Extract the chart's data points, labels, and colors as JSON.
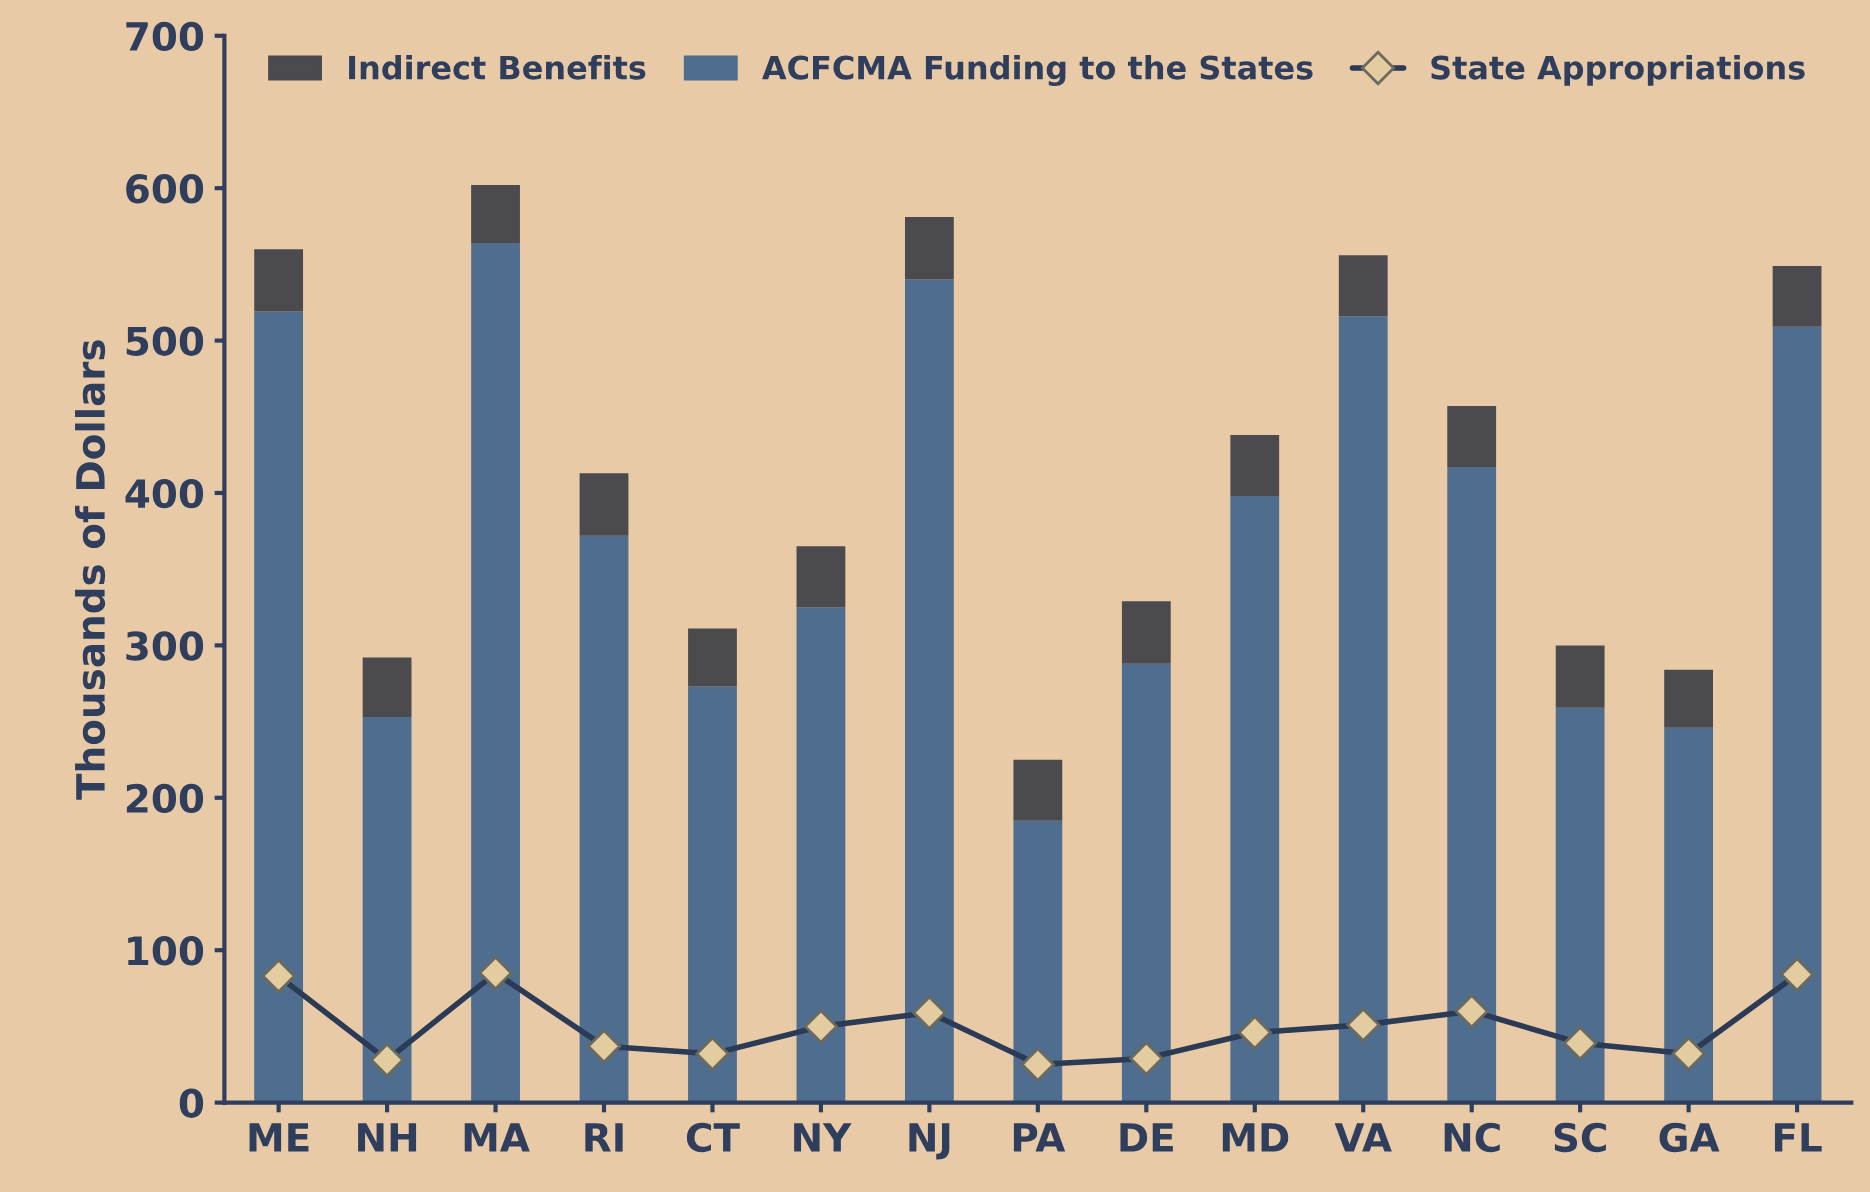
{
  "chart_data": {
    "type": "bar",
    "stacked": true,
    "ylabel": "Thousands of Dollars",
    "categories": [
      "ME",
      "NH",
      "MA",
      "RI",
      "CT",
      "NY",
      "NJ",
      "PA",
      "DE",
      "MD",
      "VA",
      "NC",
      "SC",
      "GA",
      "FL"
    ],
    "series": [
      {
        "name": "ACFCMA Funding to the States",
        "color": "#4e6d8f",
        "values": [
          519,
          253,
          564,
          372,
          273,
          325,
          540,
          185,
          288,
          398,
          516,
          417,
          259,
          246,
          509
        ]
      },
      {
        "name": "Indirect Benefits",
        "color": "#4a4a4f",
        "values": [
          41,
          39,
          38,
          41,
          38,
          40,
          41,
          40,
          41,
          40,
          40,
          40,
          41,
          38,
          40
        ]
      },
      {
        "name": "State Appropriations",
        "type": "line",
        "color": "#2b3a55",
        "marker": "diamond",
        "values": [
          83,
          28,
          85,
          37,
          32,
          50,
          59,
          25,
          29,
          46,
          51,
          60,
          39,
          32,
          84
        ]
      }
    ],
    "ylim": [
      0,
      700
    ],
    "yticks": [
      0,
      100,
      200,
      300,
      400,
      500,
      600,
      700
    ],
    "grid": false,
    "legend": "top"
  }
}
